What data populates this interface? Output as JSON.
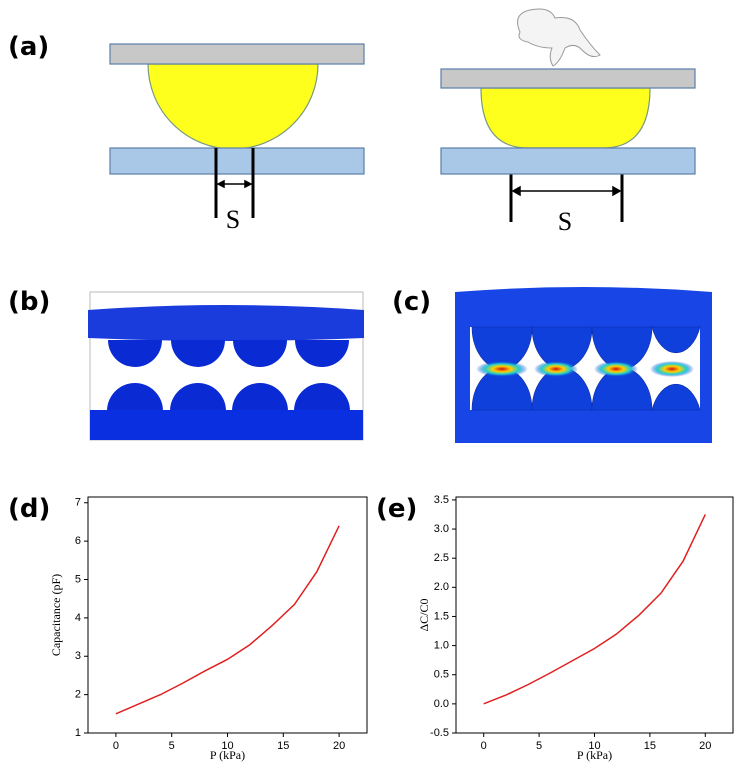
{
  "figure": {
    "panel_labels": [
      "(a)",
      "(b)",
      "(c)"
    ],
    "s_labels": [
      "S",
      "S"
    ]
  },
  "chart_data": [
    {
      "type": "line",
      "panel_label": "(d)",
      "x_label": "P (kPa)",
      "y_label": "Capacitance (pF)",
      "x": [
        0,
        2,
        4,
        6,
        8,
        10,
        12,
        14,
        16,
        18,
        20
      ],
      "series": [
        {
          "color": "#e02020",
          "values": [
            1.5,
            1.75,
            2.0,
            2.3,
            2.62,
            2.92,
            3.3,
            3.8,
            4.35,
            5.2,
            6.4
          ]
        }
      ],
      "xlim": [
        -2.5,
        22.5
      ],
      "ylim": [
        1,
        7.15
      ],
      "xticks": [
        0,
        5,
        10,
        15,
        20
      ],
      "yticks": [
        1,
        2,
        3,
        4,
        5,
        6,
        7
      ]
    },
    {
      "type": "line",
      "panel_label": "(e)",
      "x_label": "P (kPa)",
      "y_label": "ΔC/C0",
      "x": [
        0,
        2,
        4,
        6,
        8,
        10,
        12,
        14,
        16,
        18,
        20
      ],
      "series": [
        {
          "color": "#e02020",
          "values": [
            0,
            0.15,
            0.33,
            0.53,
            0.74,
            0.95,
            1.2,
            1.52,
            1.9,
            2.45,
            3.25
          ]
        }
      ],
      "xlim": [
        -2.5,
        22.5
      ],
      "ylim": [
        -0.5,
        3.55
      ],
      "xticks": [
        0,
        5,
        10,
        15,
        20
      ],
      "yticks": [
        -0.5,
        {
          "value": 0,
          "label": "0.0"
        },
        0.5,
        {
          "value": 1,
          "label": "1.0"
        },
        1.5,
        {
          "value": 2,
          "label": "2.0"
        },
        2.5,
        {
          "value": 3,
          "label": "3.0"
        },
        3.5
      ]
    }
  ]
}
